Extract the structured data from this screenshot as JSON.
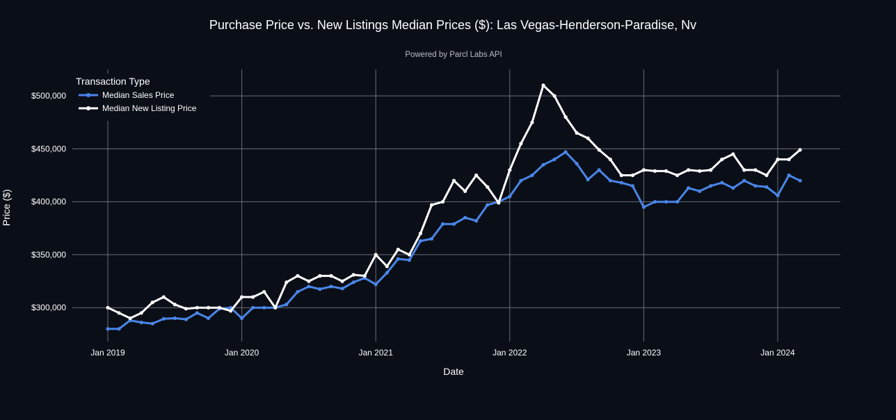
{
  "chart_data": {
    "type": "line",
    "title": "Purchase Price vs. New Listings Median Prices ($): Las Vegas-Henderson-Paradise, Nv",
    "subtitle": "Powered by Parcl Labs API",
    "xlabel": "Date",
    "ylabel": "Price ($)",
    "ylim": [
      268000,
      525000
    ],
    "y_ticks": [
      300000,
      350000,
      400000,
      450000,
      500000
    ],
    "y_tick_labels": [
      "$300,000",
      "$350,000",
      "$400,000",
      "$450,000",
      "$500,000"
    ],
    "x_ticks": [
      "2019-01",
      "2020-01",
      "2021-01",
      "2022-01",
      "2023-01",
      "2024-01"
    ],
    "x_tick_labels": [
      "Jan 2019",
      "Jan 2020",
      "Jan 2021",
      "Jan 2022",
      "Jan 2023",
      "Jan 2024"
    ],
    "grid": true,
    "legend": {
      "title": "Transaction Type",
      "placement": "top-left"
    },
    "x": [
      "2019-01",
      "2019-02",
      "2019-03",
      "2019-04",
      "2019-05",
      "2019-06",
      "2019-07",
      "2019-08",
      "2019-09",
      "2019-10",
      "2019-11",
      "2019-12",
      "2020-01",
      "2020-02",
      "2020-03",
      "2020-04",
      "2020-05",
      "2020-06",
      "2020-07",
      "2020-08",
      "2020-09",
      "2020-10",
      "2020-11",
      "2020-12",
      "2021-01",
      "2021-02",
      "2021-03",
      "2021-04",
      "2021-05",
      "2021-06",
      "2021-07",
      "2021-08",
      "2021-09",
      "2021-10",
      "2021-11",
      "2021-12",
      "2022-01",
      "2022-02",
      "2022-03",
      "2022-04",
      "2022-05",
      "2022-06",
      "2022-07",
      "2022-08",
      "2022-09",
      "2022-10",
      "2022-11",
      "2022-12",
      "2023-01",
      "2023-02",
      "2023-03",
      "2023-04",
      "2023-05",
      "2023-06",
      "2023-07",
      "2023-08",
      "2023-09",
      "2023-10",
      "2023-11",
      "2023-12",
      "2024-01",
      "2024-02",
      "2024-03"
    ],
    "series": [
      {
        "name": "Median Sales Price",
        "color": "#4a86e8",
        "values": [
          280000,
          280000,
          288000,
          286000,
          285000,
          289500,
          290000,
          289000,
          295000,
          290000,
          299000,
          300000,
          290000,
          300000,
          300000,
          300000,
          303000,
          315000,
          320000,
          317500,
          320000,
          318000,
          324000,
          328000,
          322000,
          333000,
          346000,
          345000,
          363000,
          365000,
          379000,
          379000,
          385000,
          382000,
          397000,
          400000,
          405000,
          420000,
          425000,
          435000,
          440000,
          447000,
          436000,
          421000,
          430000,
          420000,
          418000,
          415000,
          395000,
          400000,
          400000,
          400000,
          413000,
          410000,
          415000,
          418000,
          413000,
          420000,
          415000,
          414000,
          406000,
          425000,
          420000
        ]
      },
      {
        "name": "Median New Listing Price",
        "color": "#ffffff",
        "values": [
          300000,
          295000,
          290000,
          295000,
          305000,
          310000,
          303000,
          299000,
          300000,
          300000,
          300000,
          297000,
          310000,
          310000,
          315000,
          300000,
          324000,
          330000,
          325000,
          330000,
          330000,
          325000,
          331000,
          330000,
          350000,
          339000,
          355000,
          350000,
          370000,
          397000,
          400000,
          420000,
          410000,
          425000,
          414000,
          399000,
          430000,
          455000,
          475000,
          510000,
          500000,
          480000,
          465000,
          460000,
          449000,
          440000,
          425000,
          425000,
          430000,
          429000,
          429000,
          425000,
          430000,
          429000,
          430000,
          440000,
          445000,
          430000,
          430000,
          425000,
          440000,
          440000,
          449000
        ]
      }
    ]
  }
}
